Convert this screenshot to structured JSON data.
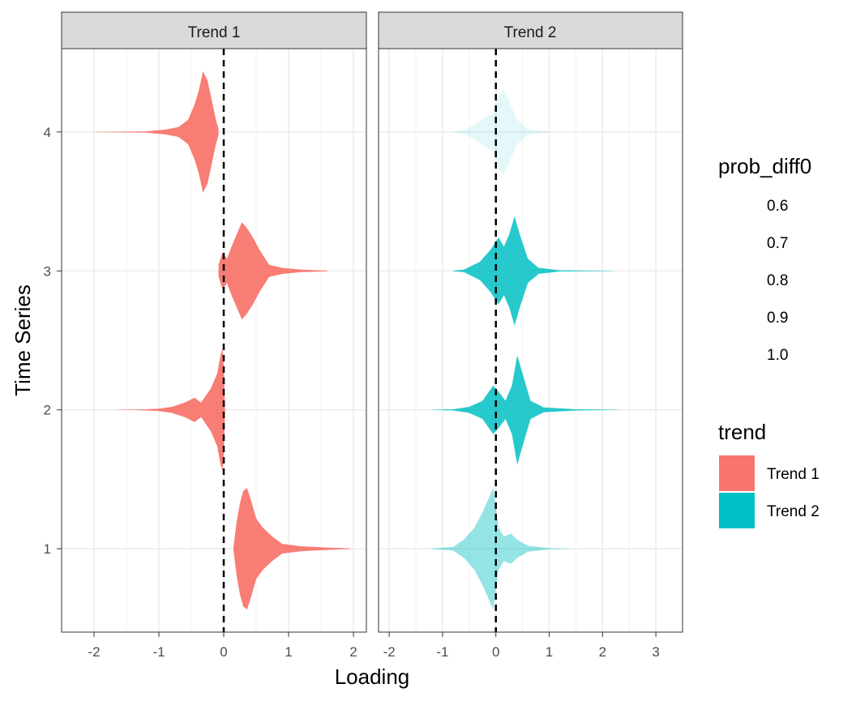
{
  "chart_data": {
    "type": "violin",
    "xlabel": "Loading",
    "ylabel": "Time Series",
    "y_categories": [
      "1",
      "2",
      "3",
      "4"
    ],
    "grid": true,
    "reference_line_x": 0,
    "facets": [
      {
        "label": "Trend 1",
        "xlim": [
          -2.5,
          2.2
        ],
        "x_ticks": [
          -2,
          -1,
          0,
          1,
          2
        ],
        "x_tick_labels": [
          "-2",
          "-1",
          "0",
          "1",
          "2"
        ],
        "color": "#F8766D",
        "violins": [
          {
            "series": "1",
            "prob_diff0": 1.0,
            "profile": [
              [
                0.15,
                0.02
              ],
              [
                0.2,
                0.45
              ],
              [
                0.25,
                0.75
              ],
              [
                0.3,
                0.95
              ],
              [
                0.36,
                1.0
              ],
              [
                0.42,
                0.8
              ],
              [
                0.5,
                0.5
              ],
              [
                0.6,
                0.35
              ],
              [
                0.75,
                0.2
              ],
              [
                0.9,
                0.08
              ],
              [
                1.2,
                0.04
              ],
              [
                1.6,
                0.02
              ],
              [
                1.95,
                0.005
              ]
            ]
          },
          {
            "series": "2",
            "prob_diff0": 1.0,
            "profile": [
              [
                -1.65,
                0.002
              ],
              [
                -1.3,
                0.005
              ],
              [
                -1.0,
                0.02
              ],
              [
                -0.8,
                0.05
              ],
              [
                -0.6,
                0.12
              ],
              [
                -0.45,
                0.2
              ],
              [
                -0.35,
                0.12
              ],
              [
                -0.2,
                0.35
              ],
              [
                -0.1,
                0.6
              ],
              [
                -0.05,
                0.9
              ],
              [
                -0.02,
                1.0
              ],
              [
                0.0,
                0.7
              ],
              [
                0.02,
                0.05
              ]
            ]
          },
          {
            "series": "3",
            "prob_diff0": 1.0,
            "profile": [
              [
                -0.08,
                0.1
              ],
              [
                -0.02,
                0.3
              ],
              [
                0.05,
                0.2
              ],
              [
                0.12,
                0.4
              ],
              [
                0.2,
                0.6
              ],
              [
                0.28,
                0.8
              ],
              [
                0.36,
                0.7
              ],
              [
                0.45,
                0.55
              ],
              [
                0.55,
                0.35
              ],
              [
                0.7,
                0.1
              ],
              [
                0.9,
                0.05
              ],
              [
                1.2,
                0.02
              ],
              [
                1.6,
                0.005
              ]
            ]
          },
          {
            "series": "4",
            "prob_diff0": 1.0,
            "profile": [
              [
                -2.0,
                0.002
              ],
              [
                -1.6,
                0.005
              ],
              [
                -1.2,
                0.01
              ],
              [
                -0.9,
                0.04
              ],
              [
                -0.7,
                0.08
              ],
              [
                -0.55,
                0.2
              ],
              [
                -0.45,
                0.45
              ],
              [
                -0.38,
                0.7
              ],
              [
                -0.32,
                1.0
              ],
              [
                -0.25,
                0.85
              ],
              [
                -0.18,
                0.5
              ],
              [
                -0.12,
                0.2
              ],
              [
                -0.08,
                0.05
              ]
            ]
          }
        ]
      },
      {
        "label": "Trend 2",
        "xlim": [
          -2.2,
          3.5
        ],
        "x_ticks": [
          -2,
          -1,
          0,
          1,
          2,
          3
        ],
        "x_tick_labels": [
          "-2",
          "-1",
          "0",
          "1",
          "2",
          "3"
        ],
        "color": "#00BFC4",
        "violins": [
          {
            "series": "1",
            "prob_diff0": 0.75,
            "profile": [
              [
                -1.2,
                0.005
              ],
              [
                -0.8,
                0.03
              ],
              [
                -0.6,
                0.15
              ],
              [
                -0.4,
                0.35
              ],
              [
                -0.25,
                0.6
              ],
              [
                -0.15,
                0.8
              ],
              [
                -0.05,
                1.0
              ],
              [
                0.05,
                0.35
              ],
              [
                0.15,
                0.2
              ],
              [
                0.28,
                0.25
              ],
              [
                0.4,
                0.15
              ],
              [
                0.6,
                0.05
              ],
              [
                1.0,
                0.01
              ],
              [
                1.4,
                0.002
              ]
            ]
          },
          {
            "series": "2",
            "prob_diff0": 0.95,
            "profile": [
              [
                -1.2,
                0.002
              ],
              [
                -0.8,
                0.01
              ],
              [
                -0.5,
                0.05
              ],
              [
                -0.25,
                0.15
              ],
              [
                -0.05,
                0.4
              ],
              [
                0.05,
                0.3
              ],
              [
                0.18,
                0.15
              ],
              [
                0.3,
                0.4
              ],
              [
                0.4,
                0.9
              ],
              [
                0.5,
                0.6
              ],
              [
                0.65,
                0.15
              ],
              [
                0.9,
                0.04
              ],
              [
                1.5,
                0.01
              ],
              [
                2.3,
                0.002
              ]
            ]
          },
          {
            "series": "3",
            "prob_diff0": 0.95,
            "profile": [
              [
                -0.8,
                0.005
              ],
              [
                -0.6,
                0.02
              ],
              [
                -0.3,
                0.15
              ],
              [
                -0.1,
                0.35
              ],
              [
                0.05,
                0.55
              ],
              [
                0.15,
                0.4
              ],
              [
                0.25,
                0.6
              ],
              [
                0.35,
                0.9
              ],
              [
                0.45,
                0.6
              ],
              [
                0.6,
                0.2
              ],
              [
                0.8,
                0.05
              ],
              [
                1.2,
                0.01
              ],
              [
                2.2,
                0.002
              ]
            ]
          },
          {
            "series": "4",
            "prob_diff0": 0.6,
            "profile": [
              [
                -0.8,
                0.005
              ],
              [
                -0.55,
                0.05
              ],
              [
                -0.35,
                0.15
              ],
              [
                -0.2,
                0.25
              ],
              [
                -0.05,
                0.3
              ],
              [
                0.05,
                0.6
              ],
              [
                0.15,
                0.7
              ],
              [
                0.25,
                0.5
              ],
              [
                0.4,
                0.2
              ],
              [
                0.6,
                0.05
              ],
              [
                1.0,
                0.005
              ]
            ]
          }
        ]
      }
    ],
    "legends": {
      "alpha": {
        "title": "prob_diff0",
        "labels": [
          "0.6",
          "0.7",
          "0.8",
          "0.9",
          "1.0"
        ]
      },
      "fill": {
        "title": "trend",
        "entries": [
          {
            "label": "Trend 1",
            "color": "#F8766D"
          },
          {
            "label": "Trend 2",
            "color": "#00BFC4"
          }
        ]
      }
    }
  }
}
